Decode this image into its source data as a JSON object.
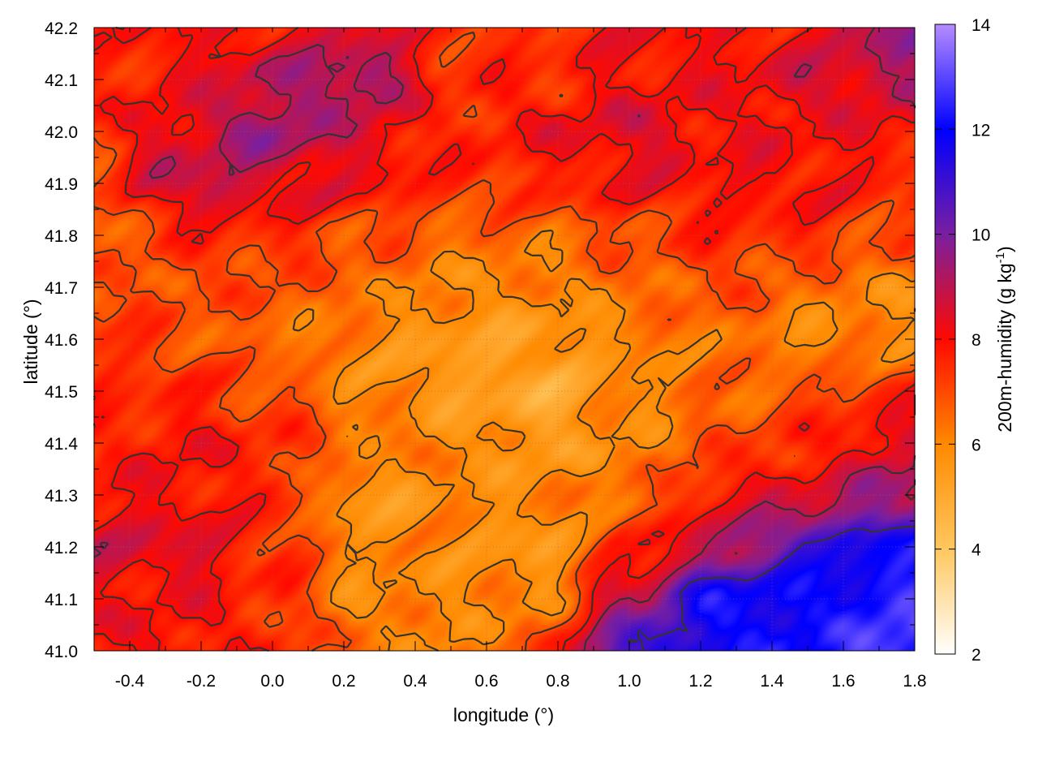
{
  "chart_data": {
    "type": "heatmap",
    "xlabel": "longitude (°)",
    "ylabel": "latitude (°)",
    "colorbar_label": "200m-humidity (g kg",
    "colorbar_label_sup": "-1",
    "colorbar_label_end": ")",
    "xlim": [
      -0.5,
      1.8
    ],
    "ylim": [
      41.0,
      42.2
    ],
    "clim": [
      2,
      14
    ],
    "xticks": [
      "-0.4",
      "-0.2",
      "0.0",
      "0.2",
      "0.4",
      "0.6",
      "0.8",
      "1.0",
      "1.2",
      "1.4",
      "1.6",
      "1.8"
    ],
    "yticks": [
      "41.0",
      "41.1",
      "41.2",
      "41.3",
      "41.4",
      "41.5",
      "41.6",
      "41.7",
      "41.8",
      "41.9",
      "42.0",
      "42.1",
      "42.2"
    ],
    "cticks": [
      "2",
      "4",
      "6",
      "8",
      "10",
      "12",
      "14"
    ],
    "grid": true,
    "contours": true,
    "palette": [
      {
        "value": 2,
        "color": "#ffffff"
      },
      {
        "value": 4,
        "color": "#ffc860"
      },
      {
        "value": 6,
        "color": "#ff8a00"
      },
      {
        "value": 8,
        "color": "#ff0a00"
      },
      {
        "value": 10,
        "color": "#7a1fa0"
      },
      {
        "value": 12,
        "color": "#0000ff"
      },
      {
        "value": 14,
        "color": "#b58cff"
      }
    ],
    "contour_color": "#333333",
    "grid_lon": [
      -0.5,
      -0.25,
      0,
      0.25,
      0.5,
      0.75,
      1.0,
      1.25,
      1.5,
      1.75
    ],
    "grid_lat": [
      41.0,
      41.1,
      41.2,
      41.3,
      41.4,
      41.5,
      41.6,
      41.7,
      41.8,
      41.9,
      42.0,
      42.1,
      42.2
    ],
    "values": [
      [
        8,
        8,
        7.5,
        6.5,
        6,
        7,
        11,
        12,
        12,
        13
      ],
      [
        8,
        8,
        7.5,
        6,
        6,
        6,
        9,
        12,
        12,
        12.5
      ],
      [
        8.5,
        8.5,
        7.5,
        6,
        6,
        5.5,
        7.5,
        9,
        11,
        12
      ],
      [
        8,
        8,
        7.5,
        5.5,
        6,
        6,
        6.5,
        8,
        8.5,
        9.5
      ],
      [
        7.5,
        8,
        7.5,
        6.5,
        6,
        5.5,
        6,
        7,
        7.5,
        8.5
      ],
      [
        7.5,
        7.5,
        7,
        6,
        5.5,
        5,
        6,
        6.5,
        7,
        7.5
      ],
      [
        7.5,
        7,
        6.5,
        6,
        5.5,
        5.5,
        6,
        6.5,
        6,
        6
      ],
      [
        7,
        7,
        7,
        6.5,
        6,
        6,
        6.5,
        7,
        6.5,
        6
      ],
      [
        6.5,
        7.5,
        7.5,
        7,
        6.5,
        6.5,
        7,
        7.5,
        7.5,
        7
      ],
      [
        7,
        9,
        8.5,
        8,
        7.5,
        7.5,
        8,
        8,
        8,
        7.5
      ],
      [
        7.5,
        8.5,
        9.5,
        8.5,
        7.5,
        8,
        8.5,
        8,
        8,
        8
      ],
      [
        7.5,
        8,
        9,
        9.5,
        7.5,
        7.5,
        8,
        8,
        8.5,
        9
      ],
      [
        7.5,
        8,
        8,
        8.5,
        7.5,
        7.5,
        8,
        8,
        8,
        9.5
      ]
    ]
  }
}
